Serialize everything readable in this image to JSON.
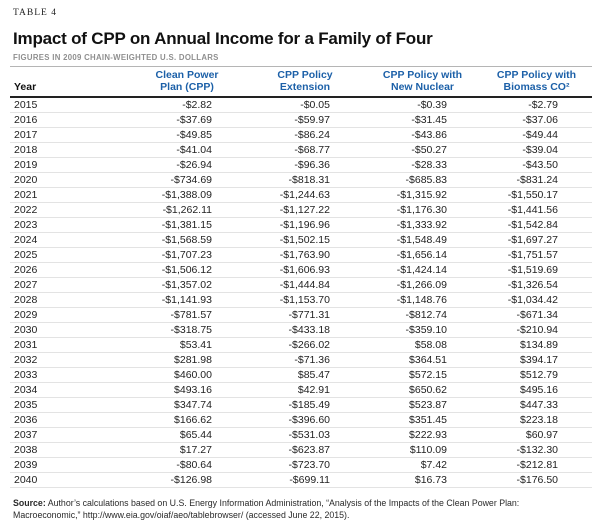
{
  "kicker": "TABLE 4",
  "title": "Impact of CPP on Annual Income for a Family of Four",
  "subtitle": "FIGURES IN 2009 CHAIN-WEIGHTED U.S. DOLLARS",
  "colors": {
    "header_blue": "#1c60a8",
    "rule_dark": "#222222",
    "rule_light": "#e3e3e3"
  },
  "chart_data": {
    "type": "table",
    "title": "Impact of CPP on Annual Income for a Family of Four",
    "units": "2009 chain-weighted U.S. dollars",
    "year_header": "Year",
    "columns": [
      {
        "label": "Clean Power Plan (CPP)",
        "line1": "Clean Power",
        "line2": "Plan (CPP)"
      },
      {
        "label": "CPP Policy Extension",
        "line1": "CPP Policy",
        "line2": "Extension"
      },
      {
        "label": "CPP Policy with New Nuclear",
        "line1": "CPP Policy with",
        "line2": "New Nuclear"
      },
      {
        "label": "CPP Policy with Biomass CO²",
        "line1": "CPP Policy with",
        "line2": "Biomass CO²"
      }
    ],
    "rows": [
      {
        "year": "2015",
        "values": [
          "-$2.82",
          "-$0.05",
          "-$0.39",
          "-$2.79"
        ]
      },
      {
        "year": "2016",
        "values": [
          "-$37.69",
          "-$59.97",
          "-$31.45",
          "-$37.06"
        ]
      },
      {
        "year": "2017",
        "values": [
          "-$49.85",
          "-$86.24",
          "-$43.86",
          "-$49.44"
        ]
      },
      {
        "year": "2018",
        "values": [
          "-$41.04",
          "-$68.77",
          "-$50.27",
          "-$39.04"
        ]
      },
      {
        "year": "2019",
        "values": [
          "-$26.94",
          "-$96.36",
          "-$28.33",
          "-$43.50"
        ]
      },
      {
        "year": "2020",
        "values": [
          "-$734.69",
          "-$818.31",
          "-$685.83",
          "-$831.24"
        ]
      },
      {
        "year": "2021",
        "values": [
          "-$1,388.09",
          "-$1,244.63",
          "-$1,315.92",
          "-$1,550.17"
        ]
      },
      {
        "year": "2022",
        "values": [
          "-$1,262.11",
          "-$1,127.22",
          "-$1,176.30",
          "-$1,441.56"
        ]
      },
      {
        "year": "2023",
        "values": [
          "-$1,381.15",
          "-$1,196.96",
          "-$1,333.92",
          "-$1,542.84"
        ]
      },
      {
        "year": "2024",
        "values": [
          "-$1,568.59",
          "-$1,502.15",
          "-$1,548.49",
          "-$1,697.27"
        ]
      },
      {
        "year": "2025",
        "values": [
          "-$1,707.23",
          "-$1,763.90",
          "-$1,656.14",
          "-$1,751.57"
        ]
      },
      {
        "year": "2026",
        "values": [
          "-$1,506.12",
          "-$1,606.93",
          "-$1,424.14",
          "-$1,519.69"
        ]
      },
      {
        "year": "2027",
        "values": [
          "-$1,357.02",
          "-$1,444.84",
          "-$1,266.09",
          "-$1,326.54"
        ]
      },
      {
        "year": "2028",
        "values": [
          "-$1,141.93",
          "-$1,153.70",
          "-$1,148.76",
          "-$1,034.42"
        ]
      },
      {
        "year": "2029",
        "values": [
          "-$781.57",
          "-$771.31",
          "-$812.74",
          "-$671.34"
        ]
      },
      {
        "year": "2030",
        "values": [
          "-$318.75",
          "-$433.18",
          "-$359.10",
          "-$210.94"
        ]
      },
      {
        "year": "2031",
        "values": [
          "$53.41",
          "-$266.02",
          "$58.08",
          "$134.89"
        ]
      },
      {
        "year": "2032",
        "values": [
          "$281.98",
          "-$71.36",
          "$364.51",
          "$394.17"
        ]
      },
      {
        "year": "2033",
        "values": [
          "$460.00",
          "$85.47",
          "$572.15",
          "$512.79"
        ]
      },
      {
        "year": "2034",
        "values": [
          "$493.16",
          "$42.91",
          "$650.62",
          "$495.16"
        ]
      },
      {
        "year": "2035",
        "values": [
          "$347.74",
          "-$185.49",
          "$523.87",
          "$447.33"
        ]
      },
      {
        "year": "2036",
        "values": [
          "$166.62",
          "-$396.60",
          "$351.45",
          "$223.18"
        ]
      },
      {
        "year": "2037",
        "values": [
          "$65.44",
          "-$531.03",
          "$222.93",
          "$60.97"
        ]
      },
      {
        "year": "2038",
        "values": [
          "$17.27",
          "-$623.87",
          "$110.09",
          "-$132.30"
        ]
      },
      {
        "year": "2039",
        "values": [
          "-$80.64",
          "-$723.70",
          "$7.42",
          "-$212.81"
        ]
      },
      {
        "year": "2040",
        "values": [
          "-$126.98",
          "-$699.11",
          "$16.73",
          "-$176.50"
        ]
      }
    ]
  },
  "source_note": {
    "label": "Source:",
    "text": " Author’s calculations based on U.S. Energy Information Administration, “Analysis of the Impacts of the Clean Power Plan: Macroeconomic,” http://www.eia.gov/oiaf/aeo/tablebrowser/ (accessed June 22, 2015)."
  }
}
